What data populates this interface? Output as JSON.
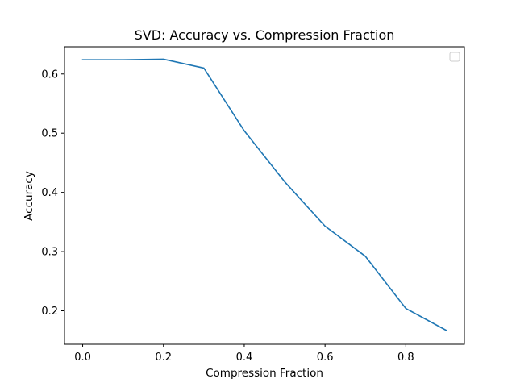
{
  "chart_data": {
    "type": "line",
    "title": "SVD: Accuracy vs. Compression Fraction",
    "xlabel": "Compression Fraction",
    "ylabel": "Accuracy",
    "xlim": [
      -0.045,
      0.945
    ],
    "ylim": [
      0.1435,
      0.646
    ],
    "xticks": [
      0.0,
      0.2,
      0.4,
      0.6,
      0.8
    ],
    "xtick_labels": [
      "0.0",
      "0.2",
      "0.4",
      "0.6",
      "0.8"
    ],
    "yticks": [
      0.2,
      0.3,
      0.4,
      0.5,
      0.6
    ],
    "ytick_labels": [
      "0.2",
      "0.3",
      "0.4",
      "0.5",
      "0.6"
    ],
    "grid": false,
    "legend": {
      "placement": "top-right",
      "entries": []
    },
    "series": [
      {
        "color": "#1f77b4",
        "x": [
          0.0,
          0.1,
          0.2,
          0.3,
          0.4,
          0.5,
          0.6,
          0.7,
          0.8,
          0.9
        ],
        "y": [
          0.624,
          0.624,
          0.625,
          0.61,
          0.504,
          0.418,
          0.343,
          0.292,
          0.204,
          0.167
        ]
      }
    ]
  }
}
